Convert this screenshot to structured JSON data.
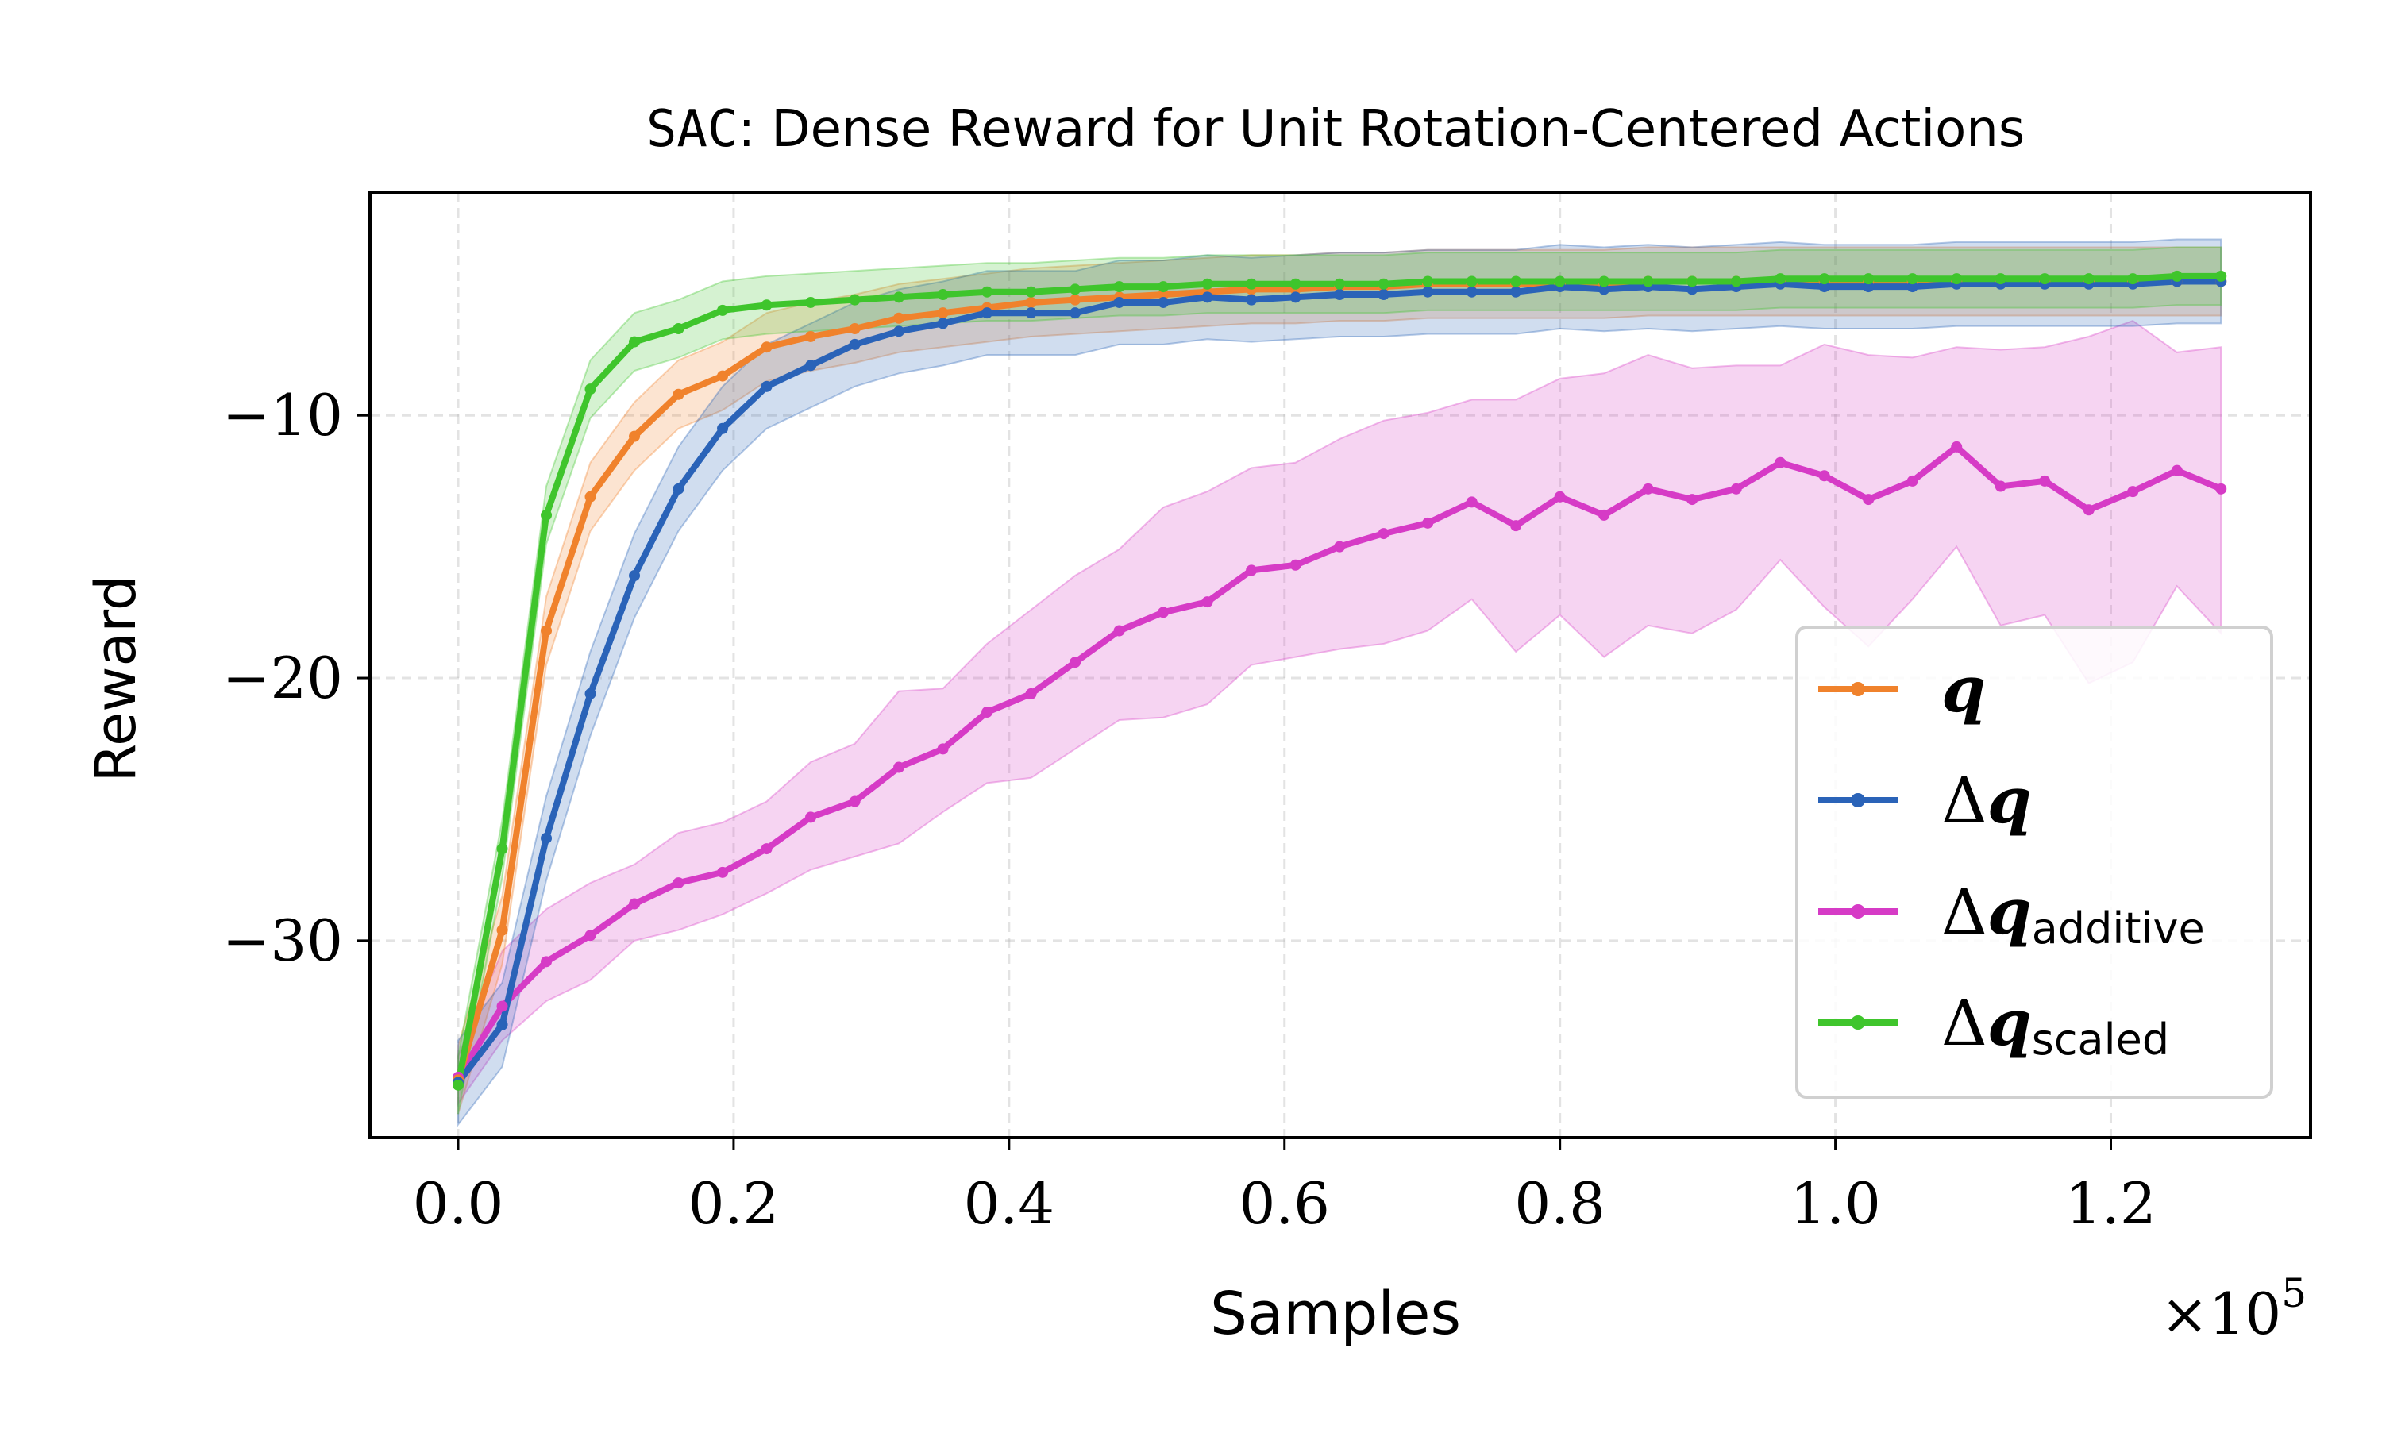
{
  "chart_data": {
    "type": "line",
    "title_mono": "SAC",
    "title_rest": ": Dense Reward for Unit Rotation-Centered Actions",
    "xlabel": "Samples",
    "ylabel": "Reward",
    "x_scale_label": "×10",
    "x_scale_exp": "5",
    "xlim": [
      -0.064,
      1.345
    ],
    "ylim": [
      -37.5,
      -1.5
    ],
    "xticks": [
      0.0,
      0.2,
      0.4,
      0.6,
      0.8,
      1.0,
      1.2
    ],
    "xtick_labels": [
      "0.0",
      "0.2",
      "0.4",
      "0.6",
      "0.8",
      "1.0",
      "1.2"
    ],
    "yticks": [
      -10,
      -20,
      -30
    ],
    "ytick_labels": [
      "−10",
      "−20",
      "−30"
    ],
    "grid": true,
    "legend_position": "lower-right",
    "x": [
      0.0,
      0.032,
      0.064,
      0.096,
      0.128,
      0.16,
      0.192,
      0.224,
      0.256,
      0.288,
      0.32,
      0.352,
      0.384,
      0.416,
      0.448,
      0.48,
      0.512,
      0.544,
      0.576,
      0.608,
      0.64,
      0.672,
      0.704,
      0.736,
      0.768,
      0.8,
      0.832,
      0.864,
      0.896,
      0.928,
      0.96,
      0.992,
      1.024,
      1.056,
      1.088,
      1.12,
      1.152,
      1.184,
      1.216,
      1.248,
      1.28
    ],
    "series": [
      {
        "name": "q",
        "legend_main": "q",
        "legend_sub": "",
        "color": "#f0822c",
        "values": [
          -35.3,
          -29.6,
          -18.2,
          -13.1,
          -10.8,
          -9.2,
          -8.5,
          -7.4,
          -7.0,
          -6.7,
          -6.3,
          -6.1,
          -5.9,
          -5.7,
          -5.6,
          -5.5,
          -5.4,
          -5.3,
          -5.2,
          -5.2,
          -5.1,
          -5.1,
          -5.0,
          -5.0,
          -5.0,
          -5.0,
          -5.0,
          -4.9,
          -4.9,
          -4.9,
          -4.9,
          -4.9,
          -4.9,
          -4.9,
          -4.9,
          -4.9,
          -4.9,
          -4.9,
          -4.9,
          -4.9,
          -4.9
        ],
        "band": 1.3
      },
      {
        "name": "Δq",
        "legend_main": "Δq",
        "legend_sub": "",
        "color": "#2a63b8",
        "values": [
          -35.4,
          -33.2,
          -26.1,
          -20.6,
          -16.1,
          -12.8,
          -10.5,
          -8.9,
          -8.1,
          -7.3,
          -6.8,
          -6.5,
          -6.1,
          -6.1,
          -6.1,
          -5.7,
          -5.7,
          -5.5,
          -5.6,
          -5.5,
          -5.4,
          -5.4,
          -5.3,
          -5.3,
          -5.3,
          -5.1,
          -5.2,
          -5.1,
          -5.2,
          -5.1,
          -5.0,
          -5.1,
          -5.1,
          -5.1,
          -5.0,
          -5.0,
          -5.0,
          -5.0,
          -5.0,
          -4.9,
          -4.9
        ],
        "band": 1.6
      },
      {
        "name": "Δq_additive",
        "legend_main": "Δq",
        "legend_sub": "additive",
        "color": "#d63bc6",
        "values": [
          -35.2,
          -32.5,
          -30.8,
          -29.8,
          -28.6,
          -27.8,
          -27.4,
          -26.5,
          -25.3,
          -24.7,
          -23.4,
          -22.7,
          -21.3,
          -20.6,
          -19.4,
          -18.2,
          -17.5,
          -17.1,
          -15.9,
          -15.7,
          -15.0,
          -14.5,
          -14.1,
          -13.3,
          -14.2,
          -13.1,
          -13.8,
          -12.8,
          -13.2,
          -12.8,
          -11.8,
          -12.3,
          -13.2,
          -12.5,
          -11.2,
          -12.7,
          -12.5,
          -13.6,
          -12.9,
          -12.1,
          -12.8
        ],
        "band_lo": [
          -36.2,
          -33.8,
          -32.3,
          -31.5,
          -30.0,
          -29.6,
          -29.0,
          -28.2,
          -27.3,
          -26.8,
          -26.3,
          -25.1,
          -24.0,
          -23.8,
          -22.7,
          -21.6,
          -21.5,
          -21.0,
          -19.5,
          -19.2,
          -18.9,
          -18.7,
          -18.2,
          -17.0,
          -19.0,
          -17.6,
          -19.2,
          -18.0,
          -18.3,
          -17.4,
          -15.5,
          -17.3,
          -18.8,
          -17.0,
          -15.0,
          -18.0,
          -17.6,
          -20.2,
          -19.4,
          -16.5,
          -18.3
        ],
        "band_hi": [
          -34.4,
          -30.4,
          -28.8,
          -27.8,
          -27.1,
          -25.9,
          -25.5,
          -24.7,
          -23.2,
          -22.5,
          -20.5,
          -20.4,
          -18.7,
          -17.4,
          -16.1,
          -15.1,
          -13.5,
          -12.9,
          -12.0,
          -11.8,
          -10.9,
          -10.2,
          -9.9,
          -9.4,
          -9.4,
          -8.6,
          -8.4,
          -7.7,
          -8.2,
          -8.1,
          -8.1,
          -7.3,
          -7.7,
          -7.8,
          -7.4,
          -7.5,
          -7.4,
          -7.0,
          -6.4,
          -7.6,
          -7.4
        ]
      },
      {
        "name": "Δq_scaled",
        "legend_main": "Δq",
        "legend_sub": "scaled",
        "color": "#3fc52c",
        "values": [
          -35.5,
          -26.5,
          -13.8,
          -9.0,
          -7.2,
          -6.7,
          -6.0,
          -5.8,
          -5.7,
          -5.6,
          -5.5,
          -5.4,
          -5.3,
          -5.3,
          -5.2,
          -5.1,
          -5.1,
          -5.0,
          -5.0,
          -5.0,
          -5.0,
          -5.0,
          -4.9,
          -4.9,
          -4.9,
          -4.9,
          -4.9,
          -4.9,
          -4.9,
          -4.9,
          -4.8,
          -4.8,
          -4.8,
          -4.8,
          -4.8,
          -4.8,
          -4.8,
          -4.8,
          -4.8,
          -4.7,
          -4.7
        ],
        "band": 1.1
      }
    ]
  }
}
